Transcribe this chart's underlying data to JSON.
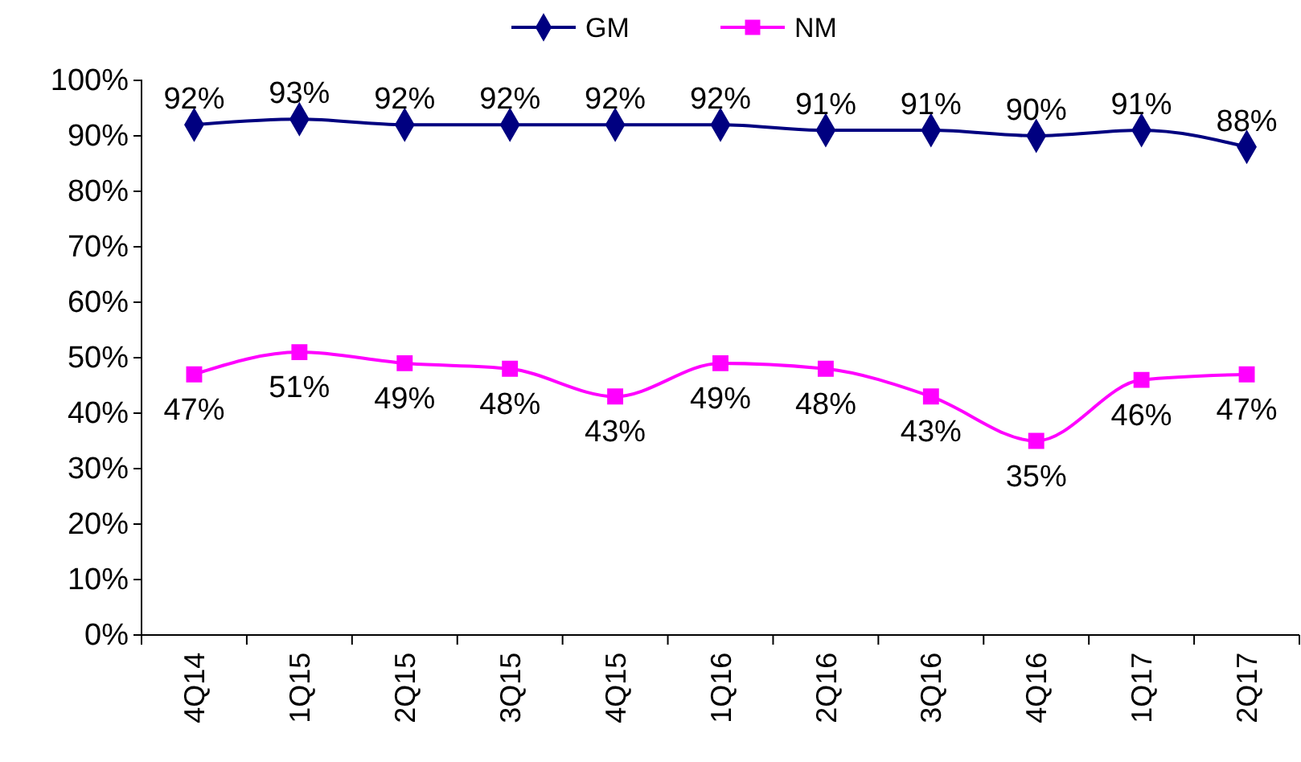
{
  "chart_data": {
    "type": "line",
    "categories": [
      "4Q14",
      "1Q15",
      "2Q15",
      "3Q15",
      "4Q15",
      "1Q16",
      "2Q16",
      "3Q16",
      "4Q16",
      "1Q17",
      "2Q17"
    ],
    "series": [
      {
        "name": "GM",
        "color": "#000080",
        "marker": "diamond",
        "values": [
          92,
          93,
          92,
          92,
          92,
          92,
          91,
          91,
          90,
          91,
          88
        ],
        "value_labels": [
          "92%",
          "93%",
          "92%",
          "92%",
          "92%",
          "92%",
          "91%",
          "91%",
          "90%",
          "91%",
          "88%"
        ]
      },
      {
        "name": "NM",
        "color": "#ff00ff",
        "marker": "square",
        "values": [
          47,
          51,
          49,
          48,
          43,
          49,
          48,
          43,
          35,
          46,
          47
        ],
        "value_labels": [
          "47%",
          "51%",
          "49%",
          "48%",
          "43%",
          "49%",
          "48%",
          "43%",
          "35%",
          "46%",
          "47%"
        ]
      }
    ],
    "ylim": [
      0,
      100
    ],
    "yticks": [
      {
        "value": 0,
        "label": "0%"
      },
      {
        "value": 10,
        "label": "10%"
      },
      {
        "value": 20,
        "label": "20%"
      },
      {
        "value": 30,
        "label": "30%"
      },
      {
        "value": 40,
        "label": "40%"
      },
      {
        "value": 50,
        "label": "50%"
      },
      {
        "value": 60,
        "label": "60%"
      },
      {
        "value": 70,
        "label": "70%"
      },
      {
        "value": 80,
        "label": "80%"
      },
      {
        "value": 90,
        "label": "90%"
      },
      {
        "value": 100,
        "label": "100%"
      }
    ],
    "legend": "top",
    "grid": false
  }
}
